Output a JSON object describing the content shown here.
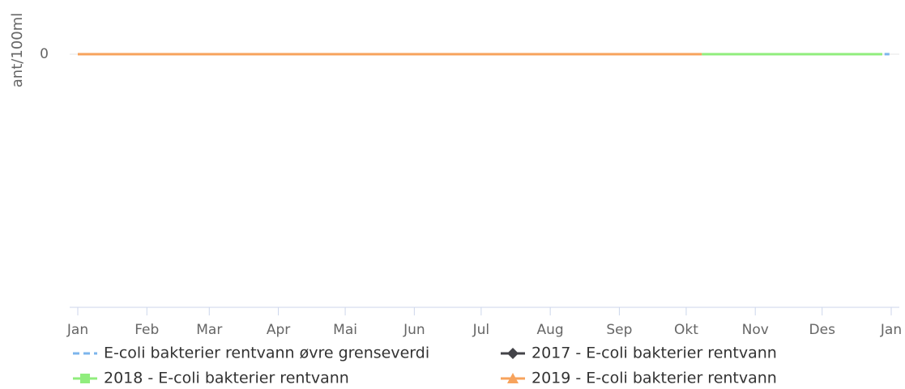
{
  "chart_data": {
    "type": "line",
    "y_axis_label": "ant/100ml",
    "xlim": [
      0,
      365
    ],
    "xticks": [
      {
        "value": 0,
        "label": "Jan"
      },
      {
        "value": 31,
        "label": "Feb"
      },
      {
        "value": 59,
        "label": "Mar"
      },
      {
        "value": 90,
        "label": "Apr"
      },
      {
        "value": 120,
        "label": "Mai"
      },
      {
        "value": 151,
        "label": "Jun"
      },
      {
        "value": 181,
        "label": "Jul"
      },
      {
        "value": 212,
        "label": "Aug"
      },
      {
        "value": 243,
        "label": "Sep"
      },
      {
        "value": 273,
        "label": "Okt"
      },
      {
        "value": 304,
        "label": "Nov"
      },
      {
        "value": 334,
        "label": "Des"
      },
      {
        "value": 365,
        "label": "Jan"
      }
    ],
    "ylim": [
      -1,
      0.15
    ],
    "yticks": [
      0
    ],
    "grid": true,
    "series": [
      {
        "name": "E-coli bakterier rentvann øvre grenseverdi",
        "color": "#7cb5ec",
        "dash": true,
        "marker": "none",
        "x": [
          362,
          365
        ],
        "values": [
          0,
          0
        ]
      },
      {
        "name": "2017 - E-coli bakterier rentvann",
        "color": "#434348",
        "marker": "diamond",
        "x": [],
        "values": []
      },
      {
        "name": "2018 - E-coli bakterier rentvann",
        "color": "#90ed7d",
        "marker": "square",
        "x": [
          280,
          361
        ],
        "values": [
          0,
          0
        ]
      },
      {
        "name": "2019 - E-coli bakterier rentvann",
        "color": "#f7a35c",
        "marker": "triangle",
        "x": [
          0,
          280
        ],
        "values": [
          0,
          0
        ]
      }
    ]
  }
}
